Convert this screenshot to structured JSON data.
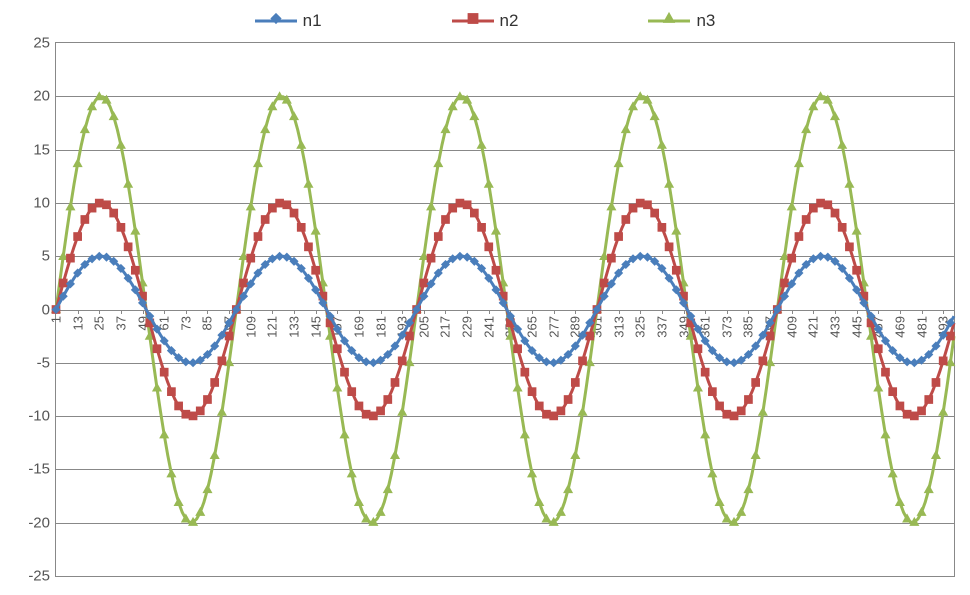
{
  "chart": {
    "type": "line",
    "background_color": "#ffffff",
    "plot_border_color": "#888888",
    "grid_color": "#888888",
    "x": {
      "start": 1,
      "end": 499,
      "tick_start": 1,
      "tick_step": 12,
      "last_tick": 493,
      "tick_label_fontsize": 13,
      "tick_label_color": "#555555",
      "tick_label_rotation": -90
    },
    "y": {
      "min": -25,
      "max": 25,
      "tick_step": 5,
      "ticks": [
        -25,
        -20,
        -15,
        -10,
        -5,
        0,
        5,
        10,
        15,
        20,
        25
      ],
      "tick_label_fontsize": 15,
      "tick_label_color": "#555555"
    },
    "legend": {
      "position": "top",
      "fontsize": 17,
      "items": [
        {
          "label": "n1",
          "color": "#4a7ebb",
          "marker": "diamond",
          "line_width": 3,
          "marker_size": 7
        },
        {
          "label": "n2",
          "color": "#be4b48",
          "marker": "square",
          "line_width": 3,
          "marker_size": 7
        },
        {
          "label": "n3",
          "color": "#98b954",
          "marker": "triangle",
          "line_width": 3,
          "marker_size": 8
        }
      ]
    },
    "series": [
      {
        "name": "n1",
        "color": "#4a7ebb",
        "marker": "diamond",
        "marker_size": 7,
        "line_width": 3,
        "type": "sine",
        "amplitude": 5,
        "period": 100,
        "phase": 0,
        "offset": 0
      },
      {
        "name": "n2",
        "color": "#be4b48",
        "marker": "square",
        "marker_size": 7,
        "line_width": 3,
        "type": "sine",
        "amplitude": 10,
        "period": 100,
        "phase": 0,
        "offset": 0
      },
      {
        "name": "n3",
        "color": "#98b954",
        "marker": "triangle",
        "marker_size": 8,
        "line_width": 3,
        "type": "sine",
        "amplitude": 20,
        "period": 100,
        "phase": 0,
        "offset": 0
      }
    ]
  }
}
